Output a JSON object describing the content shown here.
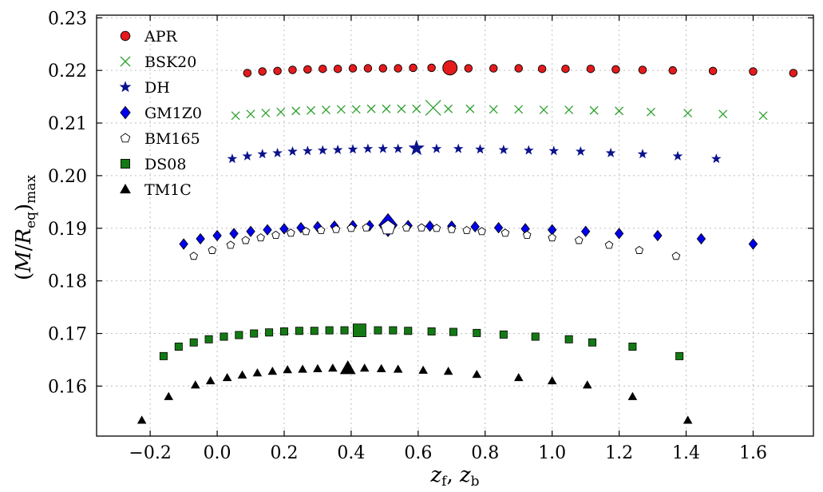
{
  "chart_data": {
    "type": "scatter",
    "title": "",
    "xlabel": "z_f, z_b",
    "ylabel": "(M/R_eq)_max",
    "xlim": [
      -0.36,
      1.78
    ],
    "ylim": [
      0.1505,
      0.2305
    ],
    "xticks": [
      -0.2,
      0.0,
      0.2,
      0.4,
      0.6,
      0.8,
      1.0,
      1.2,
      1.4,
      1.6
    ],
    "xtick_labels": [
      "−0.2",
      "0.0",
      "0.2",
      "0.4",
      "0.6",
      "0.8",
      "1.0",
      "1.2",
      "1.4",
      "1.6"
    ],
    "yticks": [
      0.16,
      0.17,
      0.18,
      0.19,
      0.2,
      0.21,
      0.22,
      0.23
    ],
    "ytick_labels": [
      "0.16",
      "0.17",
      "0.18",
      "0.19",
      "0.20",
      "0.21",
      "0.22",
      "0.23"
    ],
    "grid": true,
    "legend_position": "top-left",
    "series": [
      {
        "name": "APR",
        "marker": "circle",
        "color": "#e41a1c",
        "x": [
          0.09,
          0.135,
          0.18,
          0.225,
          0.27,
          0.315,
          0.36,
          0.405,
          0.45,
          0.495,
          0.54,
          0.585,
          0.64,
          0.75,
          0.825,
          0.9,
          0.97,
          1.04,
          1.115,
          1.19,
          1.27,
          1.36,
          1.48,
          1.6,
          1.72
        ],
        "y": [
          0.2195,
          0.2198,
          0.2199,
          0.2201,
          0.2202,
          0.2203,
          0.2203,
          0.2204,
          0.2204,
          0.2204,
          0.2204,
          0.2205,
          0.2205,
          0.2204,
          0.2204,
          0.2204,
          0.2203,
          0.2203,
          0.2203,
          0.2202,
          0.2201,
          0.22,
          0.2199,
          0.2198,
          0.2195
        ],
        "highlight": {
          "x": 0.695,
          "y": 0.2205
        }
      },
      {
        "name": "BSK20",
        "marker": "x",
        "color": "#2ca02c",
        "x": [
          0.055,
          0.1,
          0.145,
          0.19,
          0.235,
          0.28,
          0.325,
          0.37,
          0.415,
          0.46,
          0.505,
          0.55,
          0.595,
          0.69,
          0.755,
          0.825,
          0.9,
          0.975,
          1.05,
          1.125,
          1.2,
          1.295,
          1.405,
          1.51,
          1.63
        ],
        "y": [
          0.2114,
          0.2117,
          0.2119,
          0.2121,
          0.2123,
          0.2124,
          0.2125,
          0.2126,
          0.2126,
          0.2127,
          0.2127,
          0.2127,
          0.2127,
          0.2127,
          0.2127,
          0.2126,
          0.2126,
          0.2125,
          0.2125,
          0.2124,
          0.2123,
          0.2121,
          0.2119,
          0.2117,
          0.2114
        ],
        "highlight": {
          "x": 0.645,
          "y": 0.2129
        }
      },
      {
        "name": "DH",
        "marker": "star",
        "color": "#0a128c",
        "x": [
          0.045,
          0.09,
          0.135,
          0.18,
          0.225,
          0.27,
          0.315,
          0.36,
          0.405,
          0.45,
          0.495,
          0.54,
          0.655,
          0.72,
          0.785,
          0.855,
          0.93,
          1.005,
          1.085,
          1.175,
          1.27,
          1.375,
          1.49
        ],
        "y": [
          0.2032,
          0.2037,
          0.2041,
          0.2043,
          0.2046,
          0.2047,
          0.2048,
          0.2049,
          0.205,
          0.2051,
          0.2051,
          0.2051,
          0.2051,
          0.2051,
          0.205,
          0.2049,
          0.2048,
          0.2047,
          0.2046,
          0.2043,
          0.2041,
          0.2037,
          0.2032
        ],
        "highlight": {
          "x": 0.595,
          "y": 0.2052
        }
      },
      {
        "name": "GM1Z0",
        "marker": "diamond",
        "color": "#0000ee",
        "x": [
          -0.1,
          -0.05,
          0.0,
          0.05,
          0.1,
          0.15,
          0.2,
          0.25,
          0.3,
          0.35,
          0.405,
          0.455,
          0.57,
          0.635,
          0.7,
          0.77,
          0.84,
          0.92,
          1.0,
          1.1,
          1.2,
          1.315,
          1.445,
          1.6
        ],
        "y": [
          0.187,
          0.188,
          0.1886,
          0.189,
          0.1894,
          0.1897,
          0.1899,
          0.1901,
          0.1903,
          0.1904,
          0.1905,
          0.1905,
          0.1905,
          0.1904,
          0.1904,
          0.1903,
          0.1901,
          0.1899,
          0.1897,
          0.1894,
          0.189,
          0.1886,
          0.188,
          0.187
        ],
        "highlight": {
          "x": 0.51,
          "y": 0.1906
        }
      },
      {
        "name": "BM165",
        "marker": "pentagon",
        "color": "#ffffff",
        "x": [
          -0.07,
          -0.015,
          0.04,
          0.085,
          0.13,
          0.175,
          0.22,
          0.265,
          0.31,
          0.355,
          0.4,
          0.445,
          0.565,
          0.61,
          0.655,
          0.7,
          0.745,
          0.79,
          0.86,
          0.925,
          1.0,
          1.08,
          1.17,
          1.26,
          1.37
        ],
        "y": [
          0.1847,
          0.1858,
          0.1868,
          0.1877,
          0.1882,
          0.1887,
          0.1891,
          0.1894,
          0.1896,
          0.1898,
          0.19,
          0.1901,
          0.1901,
          0.1901,
          0.19,
          0.1898,
          0.1896,
          0.1894,
          0.1891,
          0.1887,
          0.1882,
          0.1877,
          0.1868,
          0.1858,
          0.1847
        ],
        "highlight": {
          "x": 0.51,
          "y": 0.1901
        }
      },
      {
        "name": "DS08",
        "marker": "square",
        "color": "#137a13",
        "x": [
          -0.16,
          -0.115,
          -0.07,
          -0.025,
          0.02,
          0.065,
          0.11,
          0.155,
          0.2,
          0.245,
          0.29,
          0.335,
          0.38,
          0.48,
          0.525,
          0.57,
          0.64,
          0.705,
          0.775,
          0.855,
          0.95,
          1.05,
          1.12,
          1.24,
          1.38
        ],
        "y": [
          0.1657,
          0.1675,
          0.1683,
          0.1689,
          0.1694,
          0.1697,
          0.17,
          0.1702,
          0.1704,
          0.1705,
          0.1705,
          0.1706,
          0.1706,
          0.1706,
          0.1706,
          0.1705,
          0.1704,
          0.1703,
          0.1701,
          0.1698,
          0.1694,
          0.1689,
          0.1683,
          0.1675,
          0.1657
        ],
        "highlight": {
          "x": 0.425,
          "y": 0.1706
        }
      },
      {
        "name": "TM1C",
        "marker": "triangle",
        "color": "#000000",
        "x": [
          -0.225,
          -0.145,
          -0.065,
          -0.02,
          0.03,
          0.075,
          0.12,
          0.165,
          0.21,
          0.255,
          0.3,
          0.345,
          0.44,
          0.49,
          0.54,
          0.615,
          0.69,
          0.775,
          0.9,
          1.0,
          1.105,
          1.24,
          1.405
        ],
        "y": [
          0.1535,
          0.158,
          0.1602,
          0.161,
          0.1616,
          0.1621,
          0.1625,
          0.1628,
          0.1631,
          0.1632,
          0.1633,
          0.1634,
          0.1634,
          0.1633,
          0.1632,
          0.163,
          0.1628,
          0.1622,
          0.1616,
          0.161,
          0.1602,
          0.158,
          0.1535
        ],
        "highlight": {
          "x": 0.39,
          "y": 0.1634
        }
      }
    ]
  }
}
